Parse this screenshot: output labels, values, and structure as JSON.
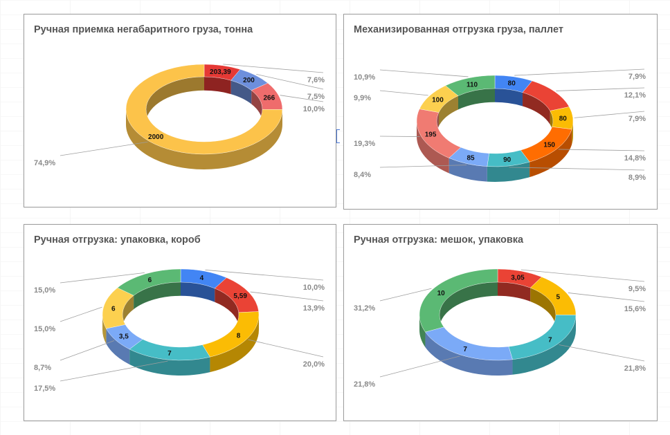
{
  "colors": {
    "blue": "#4285f4",
    "red": "#ea4335",
    "yellow": "#fbbc04",
    "green": "#34a853",
    "orange": "#ff6d01",
    "teal": "#46bdc6",
    "light_red": "#e8686a",
    "light_blue": "#7baaf7",
    "light_yellow": "#fcd04f",
    "soft_green": "#5bb974"
  },
  "chart_data": [
    {
      "type": "pie",
      "title": "Ручная приемка негабаритного груза, тонна",
      "slices": [
        {
          "value": 203.39,
          "value_label": "203,39",
          "pct_label": "7,6%",
          "color": "#e53935"
        },
        {
          "value": 200,
          "value_label": "200",
          "pct_label": "7,5%",
          "color": "#6d8fdc"
        },
        {
          "value": 266,
          "value_label": "266",
          "pct_label": "10,0%",
          "color": "#ef6c6c"
        },
        {
          "value": 2000,
          "value_label": "2000",
          "pct_label": "74,9%",
          "color": "#fcc34a"
        }
      ]
    },
    {
      "type": "pie",
      "title": "Механизированная отгрузка груза, паллет",
      "slices": [
        {
          "value": 80,
          "value_label": "80",
          "pct_label": "7,9%",
          "color": "#4285f4"
        },
        {
          "value": 122,
          "value_label": "",
          "pct_label": "12,1%",
          "color": "#ea4335"
        },
        {
          "value": 80,
          "value_label": "80",
          "pct_label": "7,9%",
          "color": "#fbbc04"
        },
        {
          "value": 150,
          "value_label": "150",
          "pct_label": "14,8%",
          "color": "#ff6d01"
        },
        {
          "value": 90,
          "value_label": "90",
          "pct_label": "8,9%",
          "color": "#46bdc6"
        },
        {
          "value": 85,
          "value_label": "85",
          "pct_label": "8,4%",
          "color": "#7baaf7"
        },
        {
          "value": 195,
          "value_label": "195",
          "pct_label": "19,3%",
          "color": "#f07b72"
        },
        {
          "value": 100,
          "value_label": "100",
          "pct_label": "9,9%",
          "color": "#fcd04f"
        },
        {
          "value": 110,
          "value_label": "110",
          "pct_label": "10,9%",
          "color": "#5bb974"
        }
      ]
    },
    {
      "type": "pie",
      "title": "Ручная отгрузка: упаковка, короб",
      "slices": [
        {
          "value": 4,
          "value_label": "4",
          "pct_label": "10,0%",
          "color": "#4285f4"
        },
        {
          "value": 5.59,
          "value_label": "5,59",
          "pct_label": "13,9%",
          "color": "#ea4335"
        },
        {
          "value": 8,
          "value_label": "8",
          "pct_label": "20,0%",
          "color": "#fbbc04"
        },
        {
          "value": 7,
          "value_label": "7",
          "pct_label": "17,5%",
          "color": "#46bdc6"
        },
        {
          "value": 3.5,
          "value_label": "3,5",
          "pct_label": "8,7%",
          "color": "#7baaf7"
        },
        {
          "value": 6,
          "value_label": "6",
          "pct_label": "15,0%",
          "color": "#fcd04f"
        },
        {
          "value": 6,
          "value_label": "6",
          "pct_label": "15,0%",
          "color": "#5bb974"
        }
      ]
    },
    {
      "type": "pie",
      "title": "Ручная отгрузка: мешок, упаковка",
      "slices": [
        {
          "value": 3.05,
          "value_label": "3,05",
          "pct_label": "9,5%",
          "color": "#ea4335"
        },
        {
          "value": 5,
          "value_label": "5",
          "pct_label": "15,6%",
          "color": "#fbbc04"
        },
        {
          "value": 7,
          "value_label": "7",
          "pct_label": "21,8%",
          "color": "#46bdc6"
        },
        {
          "value": 7,
          "value_label": "7",
          "pct_label": "21,8%",
          "color": "#7baaf7"
        },
        {
          "value": 10,
          "value_label": "10",
          "pct_label": "31,2%",
          "color": "#5bb974"
        }
      ]
    }
  ]
}
